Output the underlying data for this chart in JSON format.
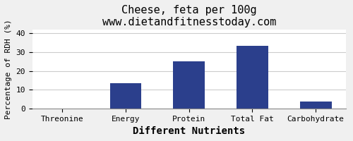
{
  "title": "Cheese, feta per 100g",
  "subtitle": "www.dietandfitnesstoday.com",
  "xlabel": "Different Nutrients",
  "ylabel": "Percentage of RDH (%)",
  "categories": [
    "Threonine",
    "Energy",
    "Protein",
    "Total Fat",
    "Carbohydrate"
  ],
  "values": [
    0,
    13.5,
    25,
    33.5,
    3.5
  ],
  "bar_color": "#2b3f8c",
  "ylim": [
    0,
    42
  ],
  "yticks": [
    0,
    10,
    20,
    30,
    40
  ],
  "background_color": "#f0f0f0",
  "plot_bg_color": "#ffffff",
  "title_fontsize": 11,
  "subtitle_fontsize": 9,
  "xlabel_fontsize": 10,
  "ylabel_fontsize": 8,
  "tick_fontsize": 8
}
